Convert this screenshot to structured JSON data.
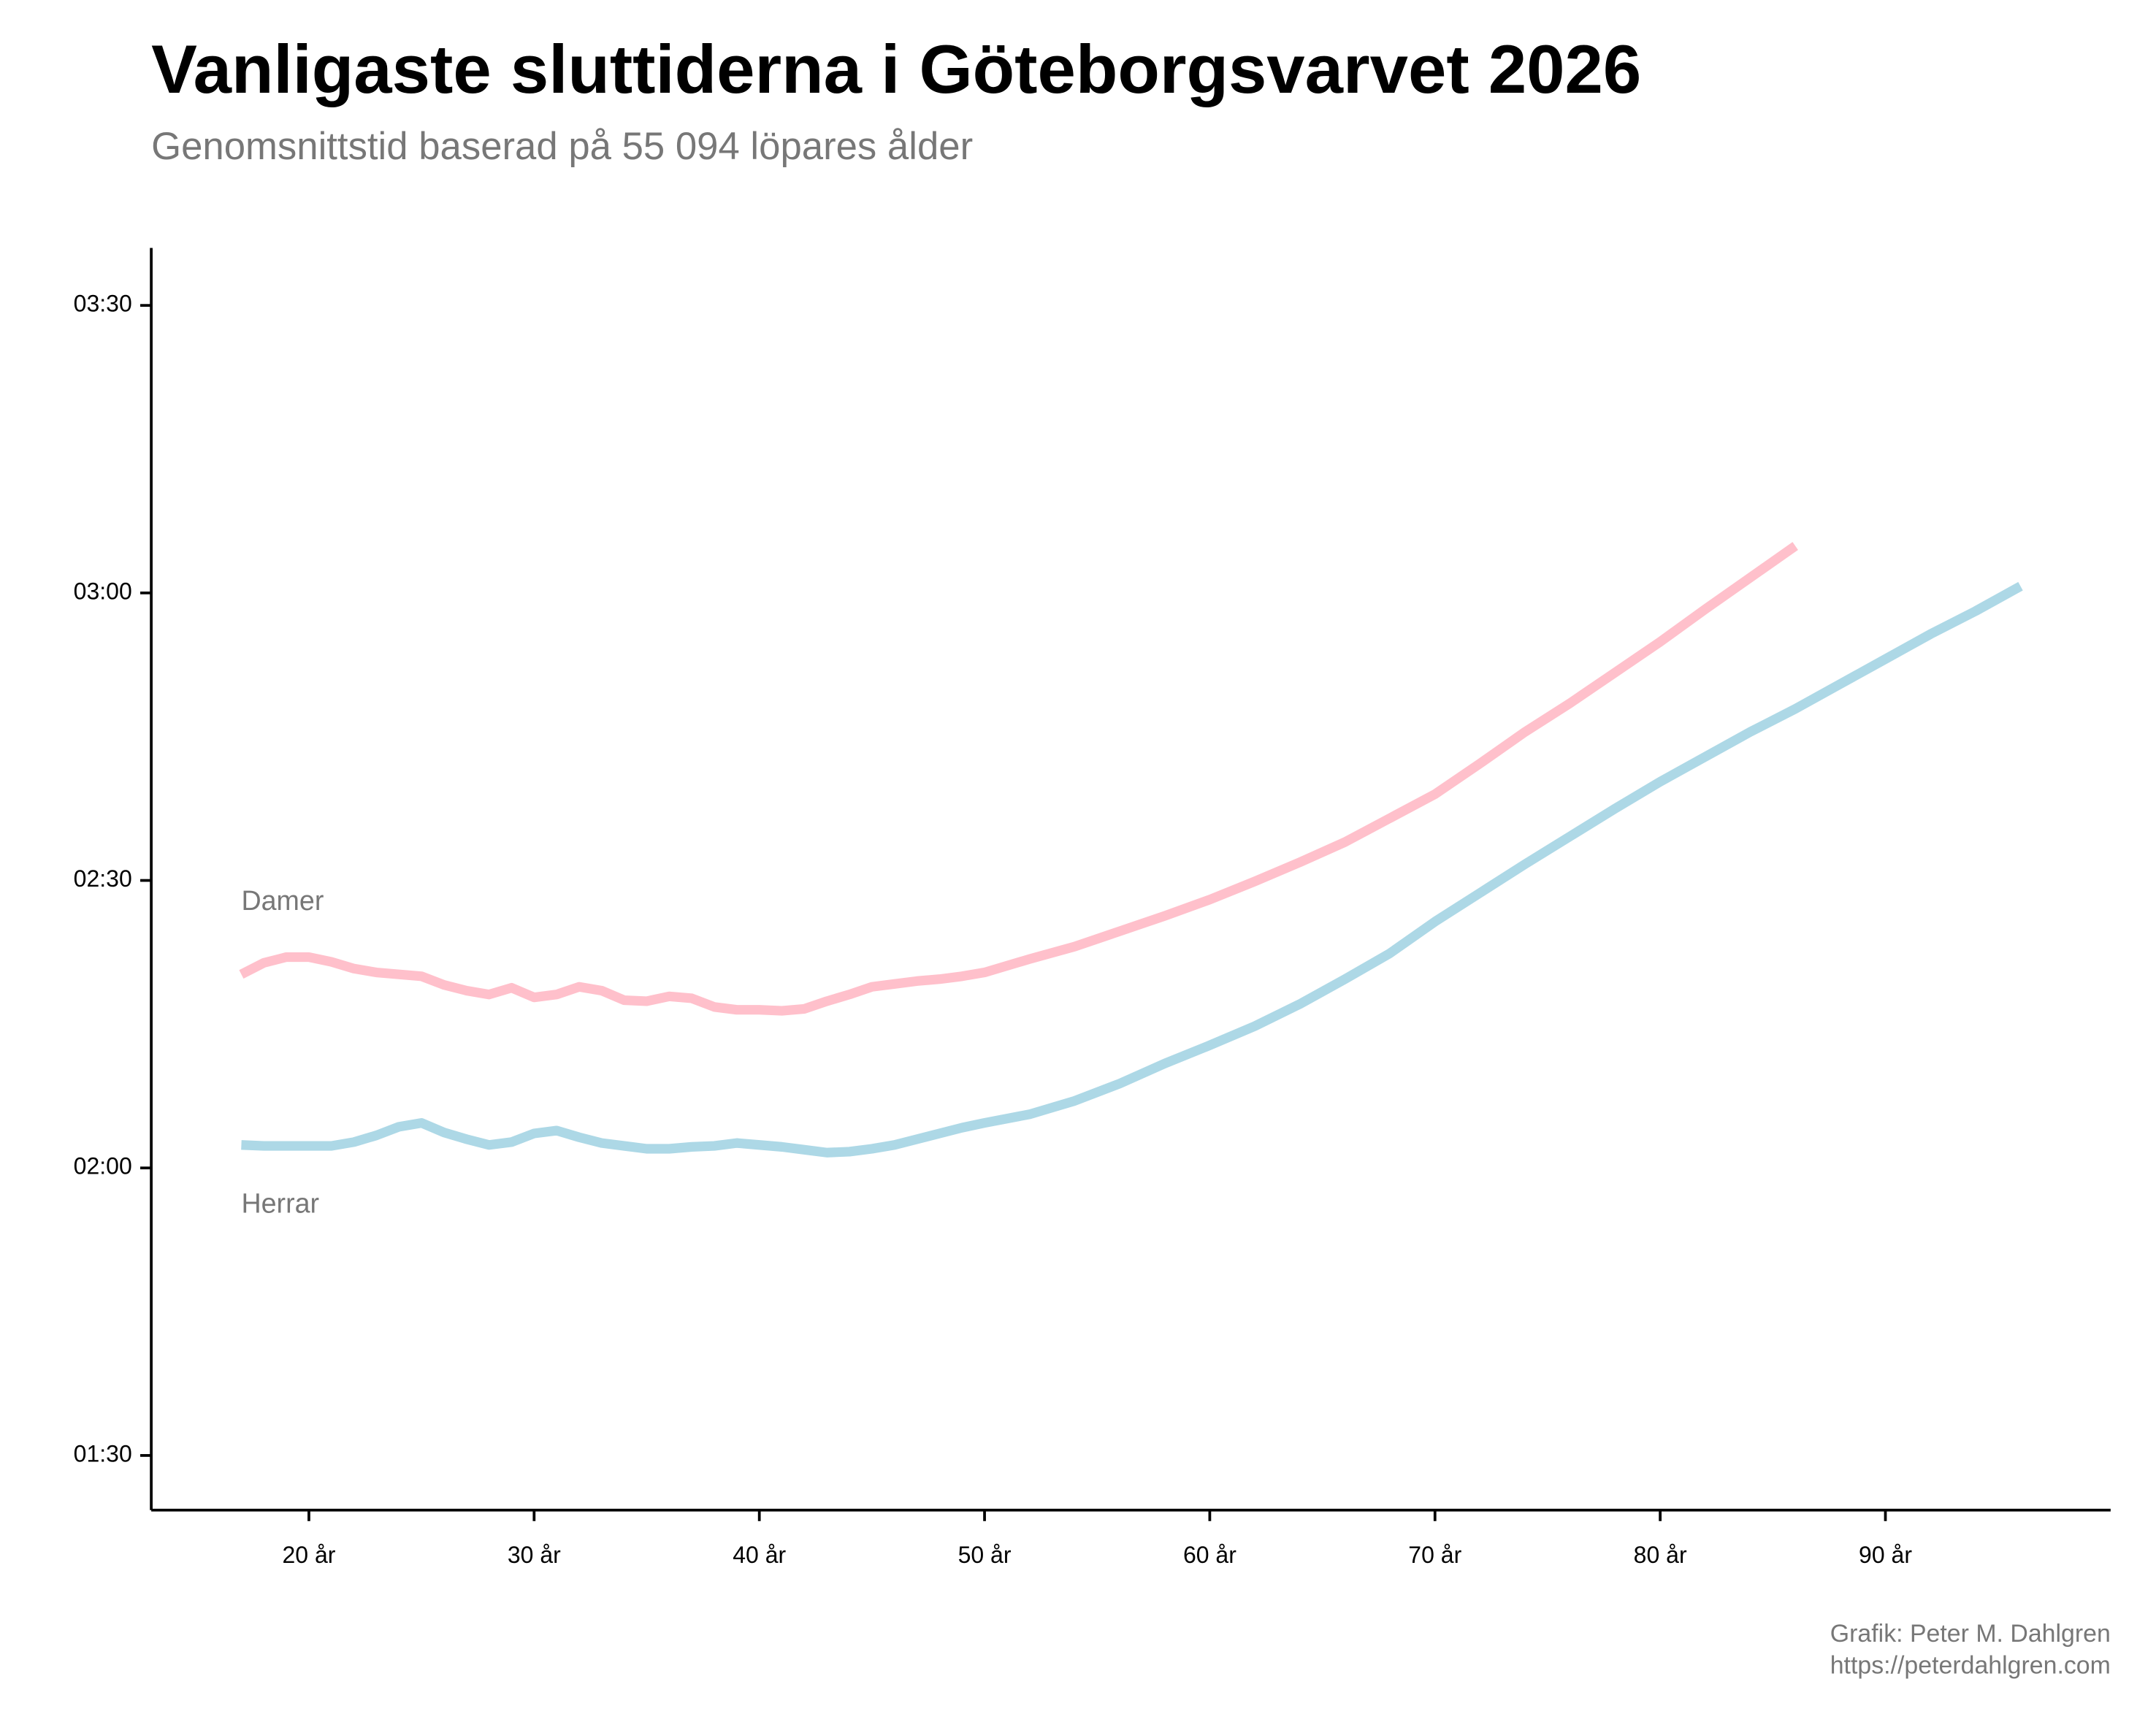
{
  "chart_data": {
    "type": "line",
    "title": "Vanligaste sluttiderna i Göteborgsvarvet 2026",
    "subtitle": "Genomsnittstid baserad på 55 094 löpares ålder",
    "credit": "Grafik: Peter M. Dahlgren",
    "url": "https://peterdahlgren.com",
    "xlim": [
      13,
      100
    ],
    "xticks": [
      {
        "value": 20,
        "label": "20 år"
      },
      {
        "value": 30,
        "label": "30 år"
      },
      {
        "value": 40,
        "label": "40 år"
      },
      {
        "value": 50,
        "label": "50 år"
      },
      {
        "value": 60,
        "label": "60 år"
      },
      {
        "value": 70,
        "label": "70 år"
      },
      {
        "value": 80,
        "label": "80 år"
      },
      {
        "value": 90,
        "label": "90 år"
      }
    ],
    "ylim": [
      84.3,
      216
    ],
    "yticks": [
      {
        "value": 90,
        "label": "01:30"
      },
      {
        "value": 120,
        "label": "02:00"
      },
      {
        "value": 150,
        "label": "02:30"
      },
      {
        "value": 180,
        "label": "03:00"
      },
      {
        "value": 210,
        "label": "03:30"
      }
    ],
    "grid": false,
    "series": [
      {
        "name": "Damer",
        "color": "#ffc0cb",
        "x": [
          17,
          18,
          19,
          20,
          21,
          22,
          23,
          24,
          25,
          26,
          27,
          28,
          29,
          30,
          31,
          32,
          33,
          34,
          35,
          36,
          37,
          38,
          39,
          40,
          41,
          42,
          43,
          44,
          45,
          46,
          47,
          48,
          49,
          50,
          52,
          54,
          56,
          58,
          60,
          62,
          64,
          66,
          68,
          70,
          72,
          74,
          76,
          78,
          80,
          82,
          84,
          86
        ],
        "values": [
          140.2,
          141.4,
          142.0,
          142.0,
          141.5,
          140.8,
          140.4,
          140.2,
          140.0,
          139.1,
          138.5,
          138.1,
          138.8,
          137.8,
          138.1,
          138.9,
          138.5,
          137.5,
          137.4,
          137.9,
          137.7,
          136.8,
          136.5,
          136.5,
          136.4,
          136.6,
          137.4,
          138.1,
          138.9,
          139.2,
          139.5,
          139.7,
          140.0,
          140.4,
          141.8,
          143.1,
          144.7,
          146.3,
          148.0,
          149.9,
          151.9,
          154.0,
          156.5,
          159.0,
          162.2,
          165.5,
          168.5,
          171.7,
          174.9,
          178.3,
          181.6,
          184.9
        ]
      },
      {
        "name": "Herrar",
        "color": "#add8e6",
        "x": [
          17,
          18,
          19,
          20,
          21,
          22,
          23,
          24,
          25,
          26,
          27,
          28,
          29,
          30,
          31,
          32,
          33,
          34,
          35,
          36,
          37,
          38,
          39,
          40,
          41,
          42,
          43,
          44,
          45,
          46,
          47,
          48,
          49,
          50,
          52,
          54,
          56,
          58,
          60,
          62,
          64,
          66,
          68,
          70,
          72,
          74,
          76,
          78,
          80,
          82,
          84,
          86,
          88,
          90,
          92,
          94,
          96
        ],
        "values": [
          122.4,
          122.3,
          122.3,
          122.3,
          122.3,
          122.7,
          123.4,
          124.3,
          124.7,
          123.7,
          123.0,
          122.4,
          122.7,
          123.6,
          123.9,
          123.2,
          122.6,
          122.3,
          122.0,
          122.0,
          122.2,
          122.3,
          122.6,
          122.4,
          122.2,
          121.9,
          121.6,
          121.7,
          122.0,
          122.4,
          123.0,
          123.6,
          124.2,
          124.7,
          125.6,
          127.0,
          128.8,
          130.9,
          132.8,
          134.8,
          137.1,
          139.7,
          142.4,
          145.7,
          148.7,
          151.7,
          154.6,
          157.5,
          160.3,
          162.9,
          165.5,
          167.9,
          170.5,
          173.1,
          175.7,
          178.1,
          180.7
        ]
      }
    ]
  }
}
